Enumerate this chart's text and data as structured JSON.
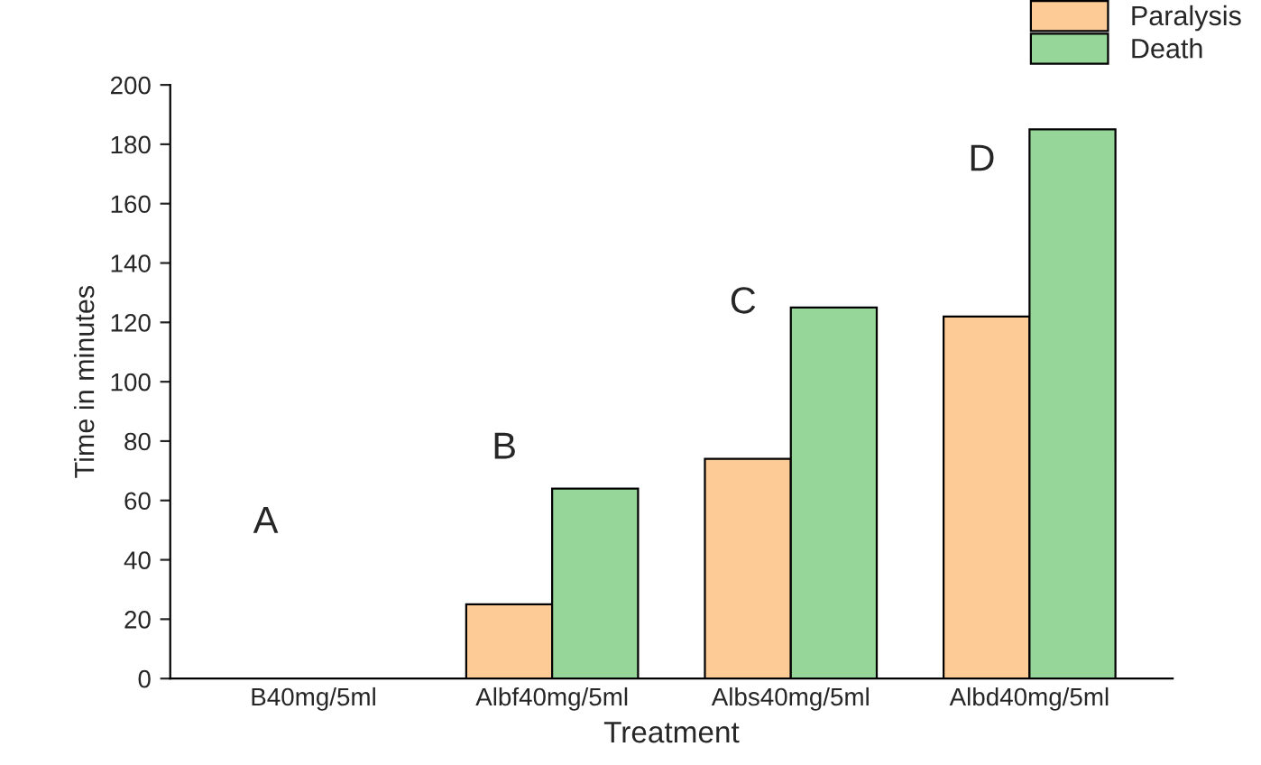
{
  "chart_data": {
    "type": "bar",
    "xlabel": "Treatment",
    "ylabel": "Time in minutes",
    "categories": [
      "B40mg/5ml",
      "Albf40mg/5ml",
      "Albs40mg/5ml",
      "Albd40mg/5ml"
    ],
    "series": [
      {
        "name": "Paralysis",
        "color": "#fdcb95",
        "values": [
          null,
          25,
          74,
          122
        ]
      },
      {
        "name": "Death",
        "color": "#97d699",
        "values": [
          null,
          64,
          125,
          185
        ]
      }
    ],
    "ylim": [
      0,
      200
    ],
    "yticks": [
      0,
      20,
      40,
      60,
      80,
      100,
      120,
      140,
      160,
      180,
      200
    ],
    "annotations": [
      "A",
      "B",
      "C",
      "D"
    ],
    "legend": "top right",
    "grid": false
  }
}
